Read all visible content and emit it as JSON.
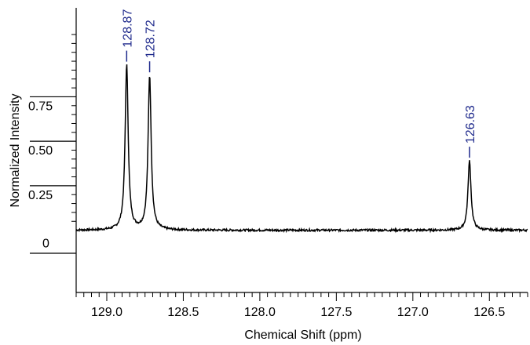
{
  "chart_data": {
    "type": "line",
    "title": "",
    "xlabel": "Chemical Shift (ppm)",
    "ylabel": "Normalized Intensity",
    "xlim": [
      129.2,
      126.25
    ],
    "ylim": [
      -0.35,
      1.25
    ],
    "x_reversed": true,
    "x_ticks": [
      {
        "value": 129.0,
        "label": "129.0"
      },
      {
        "value": 128.5,
        "label": "128.5"
      },
      {
        "value": 128.0,
        "label": "128.0"
      },
      {
        "value": 127.5,
        "label": "127.5"
      },
      {
        "value": 127.0,
        "label": "127.0"
      },
      {
        "value": 126.5,
        "label": "126.5"
      }
    ],
    "y_ticks": [
      {
        "value": 0,
        "label": "0"
      },
      {
        "value": 0.25,
        "label": "0.25"
      },
      {
        "value": 0.5,
        "label": "0.50"
      },
      {
        "value": 0.75,
        "label": "0.75"
      }
    ],
    "peaks": [
      {
        "x": 128.87,
        "y": 0.93,
        "label": "128.87",
        "width": 0.012
      },
      {
        "x": 128.72,
        "y": 0.87,
        "label": "128.72",
        "width": 0.012
      },
      {
        "x": 126.63,
        "y": 0.39,
        "label": "126.63",
        "width": 0.012
      }
    ],
    "baseline": 0.0,
    "grid": false,
    "line_color": "#000000",
    "label_color": "#1f2a8c"
  }
}
